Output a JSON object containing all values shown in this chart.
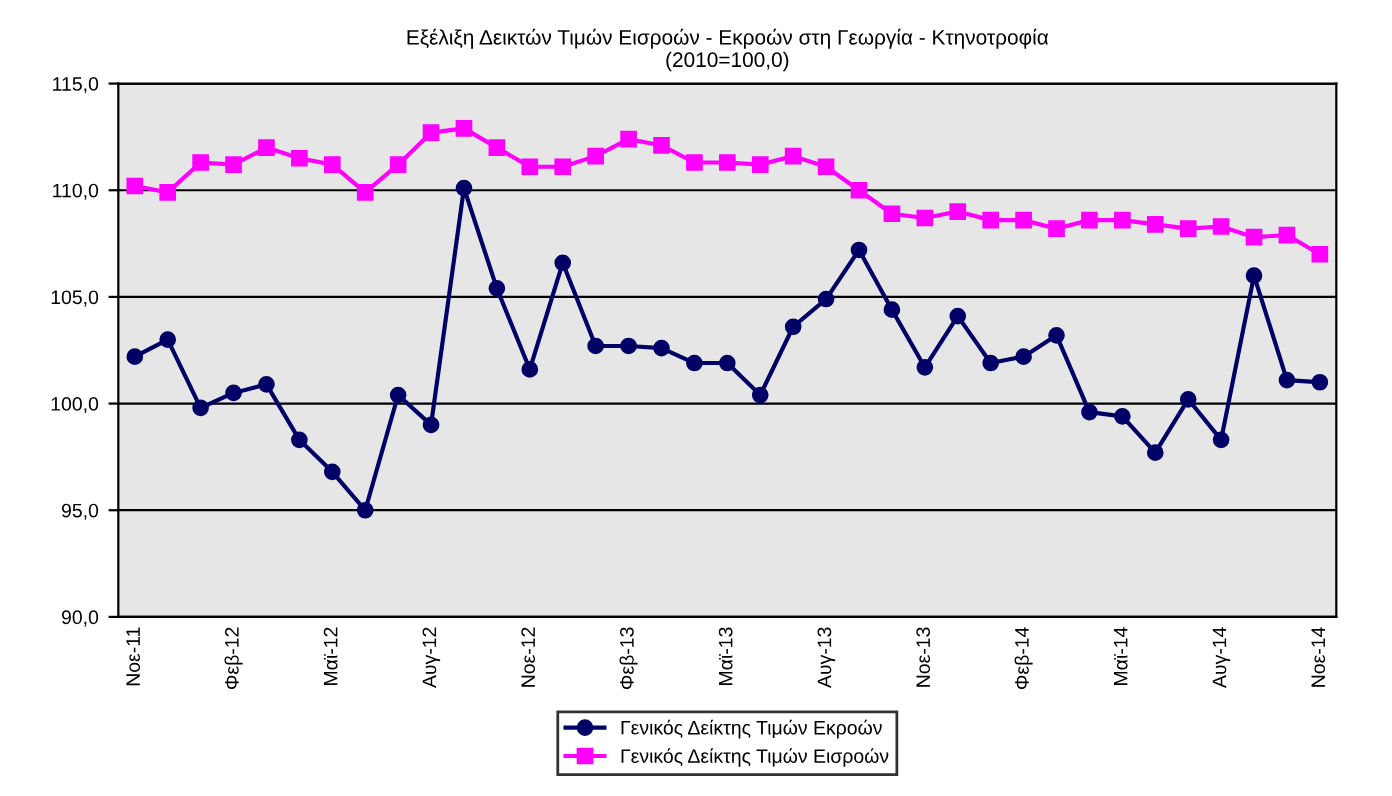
{
  "chart_data": {
    "type": "line",
    "title": "Εξέλιξη Δεικτών Τιμών Εισροών - Εκροών στη Γεωργία - Κτηνοτροφία\n(2010=100,0)",
    "categories": [
      "Νοε-11",
      null,
      null,
      "Φεβ-12",
      null,
      null,
      "Μαϊ-12",
      null,
      null,
      "Αυγ-12",
      null,
      null,
      "Νοε-12",
      null,
      null,
      "Φεβ-13",
      null,
      null,
      "Μαϊ-13",
      null,
      null,
      "Αυγ-13",
      null,
      null,
      "Νοε-13",
      null,
      null,
      "Φεβ-14",
      null,
      null,
      "Μαϊ-14",
      null,
      null,
      "Αυγ-14",
      null,
      null,
      "Νοε-14"
    ],
    "series": [
      {
        "name": "Γενικός Δείκτης Τιμών Εκροών",
        "color": "#000066",
        "marker": "circle",
        "values": [
          102.2,
          103.0,
          99.8,
          100.5,
          100.9,
          98.3,
          96.8,
          95.0,
          100.4,
          99.0,
          110.1,
          105.4,
          101.6,
          106.6,
          102.7,
          102.7,
          102.6,
          101.9,
          101.9,
          100.4,
          103.6,
          104.9,
          107.2,
          104.4,
          101.7,
          104.1,
          101.9,
          102.2,
          103.2,
          99.6,
          99.4,
          97.7,
          100.2,
          98.3,
          106.0,
          101.1,
          101.0
        ]
      },
      {
        "name": "Γενικός Δείκτης Τιμών Εισροών",
        "color": "#ff00ff",
        "marker": "square",
        "values": [
          110.2,
          109.9,
          111.3,
          111.2,
          112.0,
          111.5,
          111.2,
          109.9,
          111.2,
          112.7,
          112.9,
          112.0,
          111.1,
          111.1,
          111.6,
          112.4,
          112.1,
          111.3,
          111.3,
          111.2,
          111.6,
          111.1,
          110.0,
          108.9,
          108.7,
          109.0,
          108.6,
          108.6,
          108.2,
          108.6,
          108.6,
          108.4,
          108.2,
          108.3,
          107.8,
          107.9,
          107.0
        ]
      }
    ],
    "ylim": [
      90,
      115
    ],
    "yticks": [
      {
        "value": 90,
        "label": "90,0"
      },
      {
        "value": 95,
        "label": "95,0"
      },
      {
        "value": 100,
        "label": "100,0"
      },
      {
        "value": 105,
        "label": "105,0"
      },
      {
        "value": 110,
        "label": "110,0"
      },
      {
        "value": 115,
        "label": "115,0"
      }
    ],
    "grid": "y",
    "legend": "bottom",
    "line_style": "solid"
  }
}
